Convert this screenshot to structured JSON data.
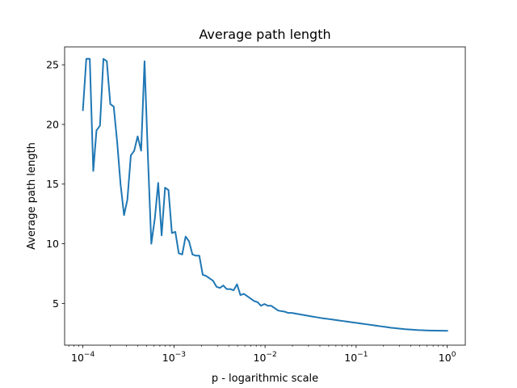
{
  "chart_data": {
    "type": "line",
    "title": "Average path length",
    "xlabel": "p - logarithmic scale",
    "ylabel": "Average path length",
    "xscale": "log",
    "xlim": [
      6.3e-05,
      1.58
    ],
    "ylim": [
      1.5,
      26.5
    ],
    "grid": false,
    "legend": "none",
    "x_ticks": [
      {
        "value": 0.0001,
        "base": "10",
        "exp": "−4"
      },
      {
        "value": 0.001,
        "base": "10",
        "exp": "−3"
      },
      {
        "value": 0.01,
        "base": "10",
        "exp": "−2"
      },
      {
        "value": 0.1,
        "base": "10",
        "exp": "−1"
      },
      {
        "value": 1,
        "base": "10",
        "exp": "0"
      }
    ],
    "y_ticks": [
      5,
      10,
      15,
      20,
      25
    ],
    "series": [
      {
        "color": "#1f77b4",
        "x": [
          0.0001,
          0.000109,
          0.000119,
          0.00013,
          0.000141,
          0.000154,
          0.000168,
          0.000183,
          0.0002,
          0.000218,
          0.000238,
          0.000259,
          0.000283,
          0.000308,
          0.000336,
          0.000366,
          0.000399,
          0.000436,
          0.000475,
          0.000518,
          0.000564,
          0.000616,
          0.000671,
          0.000732,
          0.000798,
          0.00087,
          0.000949,
          0.001035,
          0.001129,
          0.001231,
          0.001342,
          0.001464,
          0.001596,
          0.00174,
          0.001898,
          0.00207,
          0.002257,
          0.002461,
          0.002684,
          0.002927,
          0.003191,
          0.00348,
          0.003795,
          0.004138,
          0.004513,
          0.004921,
          0.005366,
          0.005852,
          0.006381,
          0.006958,
          0.007588,
          0.008275,
          0.009023,
          0.00984,
          0.01073,
          0.0117,
          0.01276,
          0.01391,
          0.01517,
          0.01655,
          0.01804,
          0.01968,
          0.02146,
          0.0234,
          0.02552,
          0.02783,
          0.03034,
          0.03309,
          0.03609,
          0.03935,
          0.04291,
          0.04679,
          0.05103,
          0.05565,
          0.06068,
          0.06617,
          0.07216,
          0.07869,
          0.08581,
          0.09358,
          0.102,
          0.1113,
          0.1214,
          0.1323,
          0.1443,
          0.1574,
          0.1716,
          0.1871,
          0.2041,
          0.2226,
          0.2427,
          0.2647,
          0.2886,
          0.3147,
          0.3432,
          0.3743,
          0.4081,
          0.4451,
          0.4853,
          0.5292,
          0.5771,
          0.6293,
          0.6863,
          0.7484,
          0.8161,
          0.89,
          0.9705,
          1.0
        ],
        "y": [
          21.2,
          25.5,
          25.5,
          16.1,
          19.5,
          19.9,
          25.5,
          25.3,
          21.7,
          21.5,
          18.5,
          15.0,
          12.4,
          13.7,
          17.4,
          17.8,
          19.0,
          17.8,
          25.3,
          17.2,
          10.0,
          12.1,
          15.1,
          10.7,
          14.7,
          14.5,
          10.9,
          11.0,
          9.2,
          9.1,
          10.6,
          10.2,
          9.1,
          9.0,
          9.0,
          7.4,
          7.3,
          7.1,
          6.9,
          6.4,
          6.3,
          6.5,
          6.2,
          6.2,
          6.1,
          6.6,
          5.7,
          5.8,
          5.6,
          5.4,
          5.2,
          5.1,
          4.8,
          4.95,
          4.8,
          4.8,
          4.6,
          4.4,
          4.35,
          4.3,
          4.2,
          4.2,
          4.15,
          4.1,
          4.05,
          4.0,
          3.95,
          3.9,
          3.85,
          3.8,
          3.75,
          3.72,
          3.68,
          3.64,
          3.6,
          3.56,
          3.52,
          3.48,
          3.44,
          3.4,
          3.36,
          3.32,
          3.28,
          3.24,
          3.2,
          3.16,
          3.12,
          3.08,
          3.04,
          3.0,
          2.96,
          2.93,
          2.9,
          2.87,
          2.84,
          2.82,
          2.8,
          2.78,
          2.76,
          2.75,
          2.74,
          2.73,
          2.72,
          2.72,
          2.71,
          2.71,
          2.7,
          2.7
        ]
      }
    ]
  }
}
